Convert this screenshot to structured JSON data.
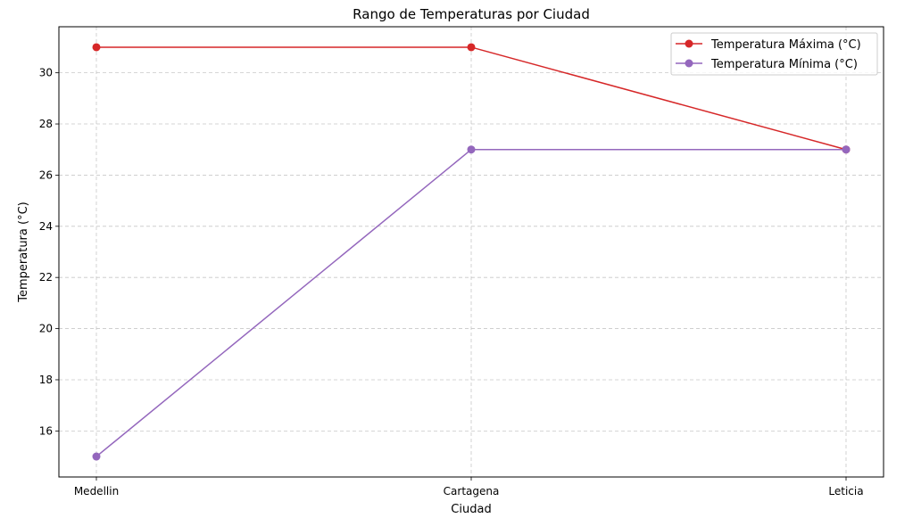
{
  "chart_data": {
    "type": "line",
    "title": "Rango de Temperaturas por Ciudad",
    "xlabel": "Ciudad",
    "ylabel": "Temperatura (°C)",
    "categories": [
      "Medellin",
      "Cartagena",
      "Leticia"
    ],
    "ylim": [
      14.2,
      31.8
    ],
    "yticks": [
      16,
      18,
      20,
      22,
      24,
      26,
      28,
      30
    ],
    "grid": true,
    "legend_position": "top-right",
    "series": [
      {
        "name": "Temperatura Máxima (°C)",
        "color": "#d62728",
        "marker": "circle",
        "values": [
          31,
          31,
          27
        ]
      },
      {
        "name": "Temperatura Mínima (°C)",
        "color": "#9467bd",
        "marker": "circle",
        "values": [
          15,
          27,
          27
        ]
      }
    ]
  }
}
